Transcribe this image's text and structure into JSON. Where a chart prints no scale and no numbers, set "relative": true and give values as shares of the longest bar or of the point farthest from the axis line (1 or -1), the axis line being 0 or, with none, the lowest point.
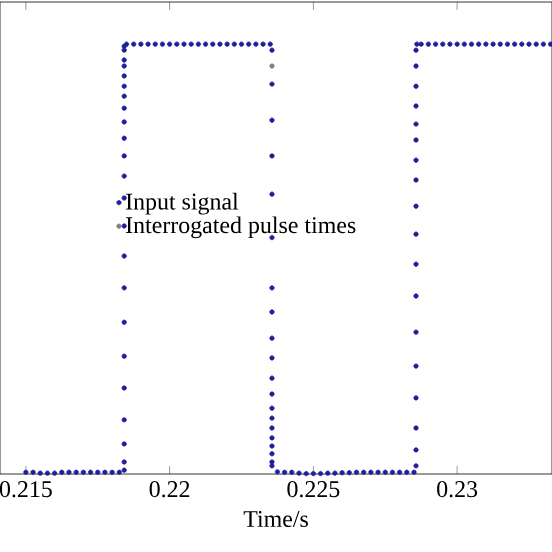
{
  "chart_data": {
    "type": "scatter",
    "xlabel": "Time/s",
    "relative": true,
    "xlim": [
      0.2141,
      0.2333
    ],
    "xticks": [
      0.215,
      0.22,
      0.225,
      0.23
    ],
    "tick_labels": "x",
    "legend": "left",
    "series": [
      {
        "name": "Input signal",
        "color": "#1f1f9e",
        "x": [
          0.215,
          0.21525,
          0.2155,
          0.21575,
          0.216,
          0.21625,
          0.2165,
          0.21675,
          0.217,
          0.21725,
          0.2175,
          0.21775,
          0.218,
          0.21825,
          0.21842,
          0.21842,
          0.21842,
          0.21842,
          0.21842,
          0.21842,
          0.21842,
          0.21842,
          0.21842,
          0.21842,
          0.21842,
          0.21842,
          0.21842,
          0.21842,
          0.21842,
          0.21842,
          0.21842,
          0.21842,
          0.21842,
          0.21842,
          0.21842,
          0.21842,
          0.21842,
          0.2185,
          0.21875,
          0.219,
          0.21925,
          0.2195,
          0.21975,
          0.22,
          0.22025,
          0.2205,
          0.22075,
          0.221,
          0.22125,
          0.2215,
          0.22175,
          0.222,
          0.22225,
          0.2225,
          0.22275,
          0.223,
          0.22325,
          0.2235,
          0.22356,
          0.22356,
          0.22356,
          0.22356,
          0.22356,
          0.22356,
          0.22356,
          0.22356,
          0.22356,
          0.22356,
          0.22356,
          0.22356,
          0.22356,
          0.22356,
          0.22356,
          0.22356,
          0.22356,
          0.22356,
          0.22356,
          0.22356,
          0.22375,
          0.224,
          0.22425,
          0.2245,
          0.22475,
          0.225,
          0.22525,
          0.2255,
          0.22575,
          0.226,
          0.22625,
          0.2265,
          0.22675,
          0.227,
          0.22725,
          0.2275,
          0.22775,
          0.228,
          0.22825,
          0.2285,
          0.22857,
          0.22857,
          0.22857,
          0.22857,
          0.22857,
          0.22857,
          0.22857,
          0.22857,
          0.22857,
          0.22857,
          0.22857,
          0.22857,
          0.22857,
          0.22857,
          0.22857,
          0.22857,
          0.22857,
          0.22857,
          0.2286,
          0.22875,
          0.229,
          0.22925,
          0.2295,
          0.22975,
          0.23,
          0.23025,
          0.2305,
          0.23075,
          0.231,
          0.23125,
          0.2315,
          0.23175,
          0.232,
          0.23225,
          0.2325,
          0.23275,
          0.233,
          0.23325
        ],
        "values": [
          0.004,
          0.004,
          0.002,
          0.002,
          0.002,
          0.004,
          0.004,
          0.004,
          0.004,
          0.004,
          0.004,
          0.004,
          0.004,
          0.004,
          0.009,
          0.028,
          0.07,
          0.126,
          0.2,
          0.274,
          0.353,
          0.433,
          0.507,
          0.577,
          0.642,
          0.693,
          0.74,
          0.781,
          0.819,
          0.851,
          0.879,
          0.902,
          0.926,
          0.949,
          0.963,
          0.986,
          0.995,
          1,
          1,
          1,
          1,
          1,
          1,
          1,
          1,
          1,
          1,
          1,
          1,
          1,
          1,
          1,
          1,
          1,
          1,
          1,
          1,
          1,
          0.986,
          0.907,
          0.823,
          0.74,
          0.651,
          0.55,
          0.433,
          0.377,
          0.316,
          0.27,
          0.223,
          0.186,
          0.153,
          0.13,
          0.107,
          0.084,
          0.065,
          0.047,
          0.028,
          0.019,
          0.005,
          0.004,
          0.004,
          0.002,
          0.001,
          0.001,
          0.001,
          0.002,
          0.002,
          0.003,
          0.003,
          0.004,
          0.004,
          0.004,
          0.004,
          0.004,
          0.004,
          0.004,
          0.004,
          0.004,
          0.019,
          0.056,
          0.107,
          0.177,
          0.251,
          0.33,
          0.414,
          0.488,
          0.558,
          0.623,
          0.684,
          0.73,
          0.777,
          0.814,
          0.856,
          0.902,
          0.949,
          0.986,
          1,
          1,
          1,
          1,
          1,
          1,
          1,
          1,
          1,
          1,
          1,
          1,
          1,
          1,
          1,
          1,
          1,
          1,
          1,
          1
        ]
      },
      {
        "name": "Interrogated pulse times",
        "color": "#808080",
        "x": [
          0.22356
        ],
        "values": [
          0.949
        ]
      }
    ]
  }
}
